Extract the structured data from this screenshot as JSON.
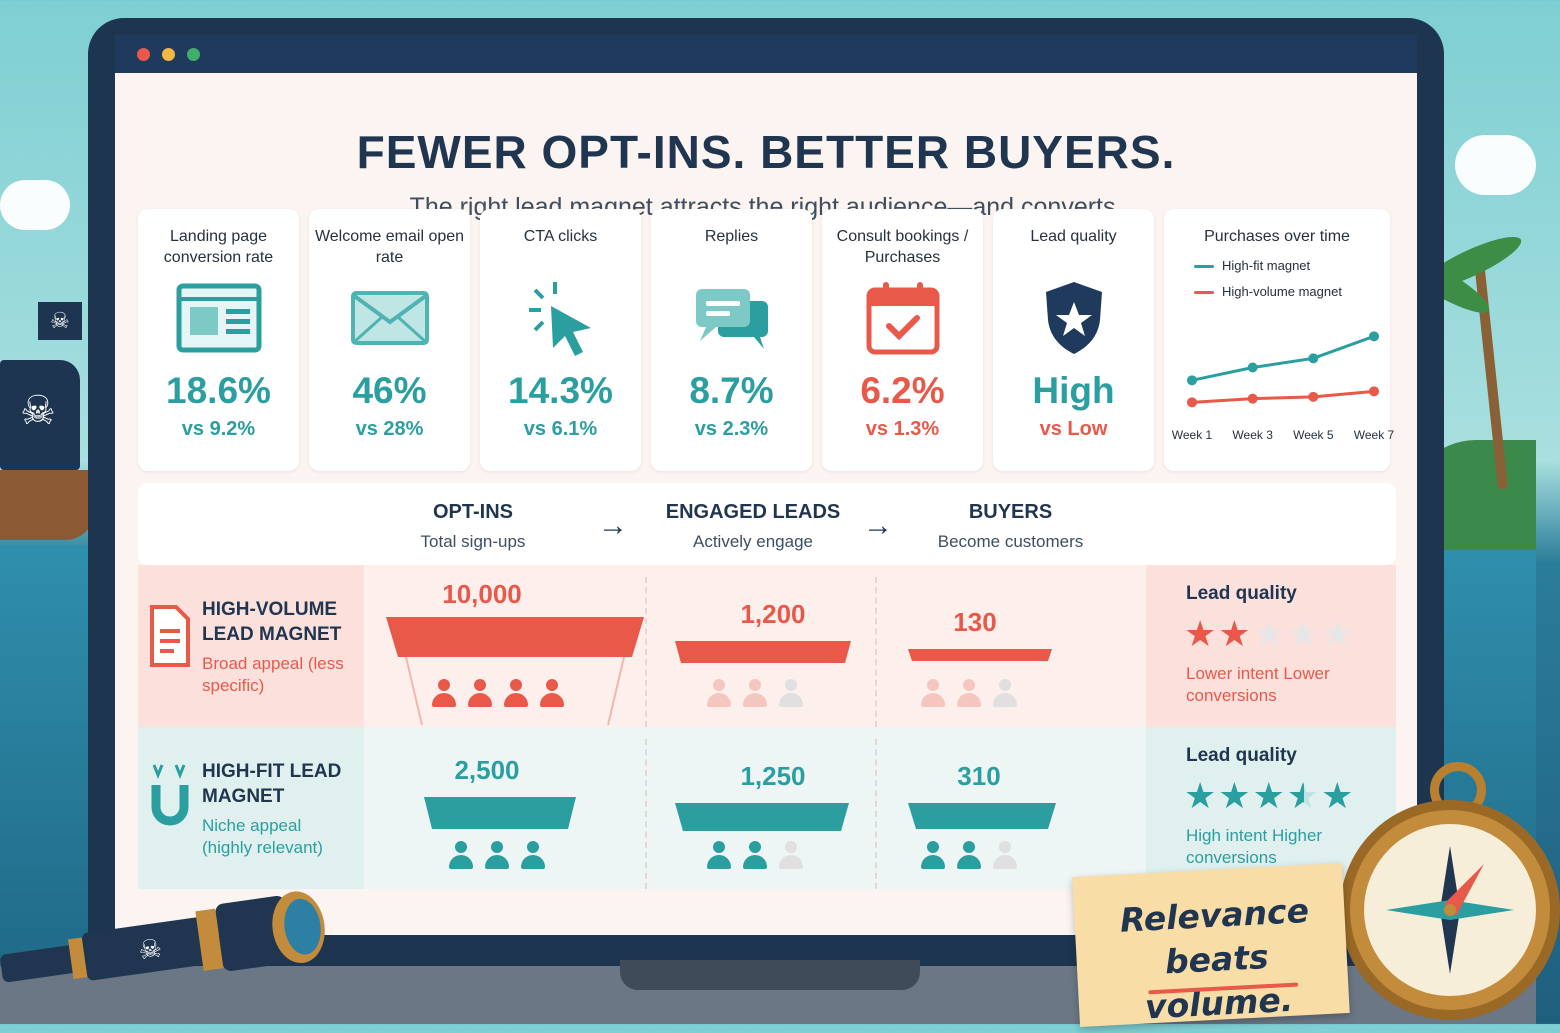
{
  "window": {
    "dots": [
      "#e8594a",
      "#f2b844",
      "#3fae6a"
    ]
  },
  "header": {
    "title": "FEWER OPT-INS. BETTER BUYERS.",
    "subtitle": "The right lead magnet attracts the right audience—and converts."
  },
  "metrics": [
    {
      "title": "Landing page conversion rate",
      "icon": "landing-page-icon",
      "value": "18.6%",
      "vs": "vs 9.2%",
      "tone": "teal"
    },
    {
      "title": "Welcome email open rate",
      "icon": "envelope-icon",
      "value": "46%",
      "vs": "vs 28%",
      "tone": "teal"
    },
    {
      "title": "CTA clicks",
      "icon": "cursor-click-icon",
      "value": "14.3%",
      "vs": "vs 6.1%",
      "tone": "teal"
    },
    {
      "title": "Replies",
      "icon": "chat-bubbles-icon",
      "value": "8.7%",
      "vs": "vs 2.3%",
      "tone": "teal"
    },
    {
      "title": "Consult bookings / Purchases",
      "icon": "calendar-check-icon",
      "value": "6.2%",
      "vs": "vs 1.3%",
      "tone": "red"
    },
    {
      "title": "Lead quality",
      "icon": "shield-star-icon",
      "value": "High",
      "vs": "vs Low",
      "tone": "teal"
    }
  ],
  "chart_data": {
    "type": "line",
    "title": "Purchases over time",
    "x": [
      "Week 1",
      "Week 3",
      "Week 5",
      "Week 7"
    ],
    "series": [
      {
        "name": "High-fit magnet",
        "values": [
          1.0,
          1.35,
          1.6,
          2.2
        ],
        "color": "#2b9ea0"
      },
      {
        "name": "High-volume magnet",
        "values": [
          0.4,
          0.5,
          0.55,
          0.7
        ],
        "color": "#e8594a"
      }
    ],
    "grid": false,
    "legend": "top-left"
  },
  "stages": [
    {
      "name": "OPT-INS",
      "desc": "Total sign-ups"
    },
    {
      "name": "ENGAGED LEADS",
      "desc": "Actively engage"
    },
    {
      "name": "BUYERS",
      "desc": "Become customers"
    }
  ],
  "rows": [
    {
      "name": "HIGH-VOLUME LEAD MAGNET",
      "desc": "Broad appeal (less specific)",
      "icon": "document-icon",
      "values": [
        "10,000",
        "1,200",
        "130"
      ],
      "color": "#e8594a",
      "quality_title": "Lead quality",
      "stars": 2,
      "quality_desc": "Lower intent Lower conversions"
    },
    {
      "name": "HIGH-FIT LEAD MAGNET",
      "desc": "Niche appeal (highly relevant)",
      "icon": "magnet-icon",
      "values": [
        "2,500",
        "1,250",
        "310"
      ],
      "color": "#2b9ea0",
      "quality_title": "Lead quality",
      "stars": 4.5,
      "quality_desc": "High intent Higher conversions"
    }
  ],
  "note": {
    "line1": "Relevance",
    "line2": "beats volume."
  }
}
